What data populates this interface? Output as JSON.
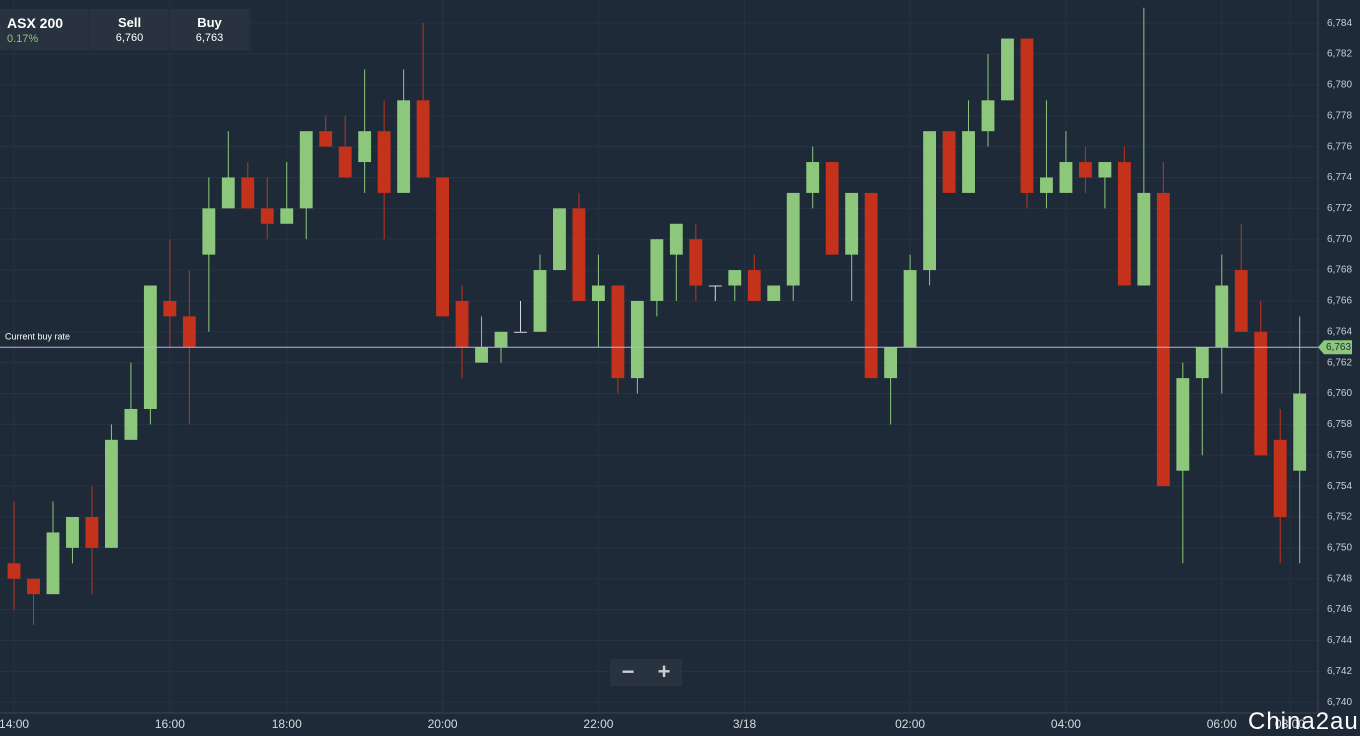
{
  "header": {
    "instrument": "ASX 200",
    "change": "0.17%",
    "sell_label": "Sell",
    "sell": "6,760",
    "buy_label": "Buy",
    "buy": "6,763"
  },
  "chart_data": {
    "type": "candlestick",
    "categories": [
      null,
      null,
      null,
      null,
      null,
      null,
      null,
      null,
      null,
      null,
      null,
      null,
      null,
      null,
      null,
      null,
      null,
      null,
      null,
      null,
      null,
      null,
      null,
      null,
      null,
      null,
      null,
      null,
      null,
      null,
      null,
      null,
      null,
      null,
      null,
      null,
      null,
      null,
      null,
      null,
      null,
      null,
      null,
      null,
      null,
      null,
      null,
      null,
      null,
      null,
      null,
      null,
      null,
      null,
      null,
      null,
      null,
      null,
      null,
      null,
      null,
      null,
      null,
      null,
      null,
      null,
      null
    ],
    "open": [
      6749,
      6748,
      6747,
      6750,
      6752,
      6750,
      6757,
      6759,
      6766,
      6765,
      6769,
      6772,
      6774,
      6772,
      6771,
      6772,
      6777,
      6776,
      6775,
      6777,
      6773,
      6779,
      6774,
      6766,
      6762,
      6763,
      6764,
      6764,
      6768,
      6772,
      6766,
      6767,
      6761,
      6766,
      6769,
      6770,
      6767,
      6767,
      6768,
      6766,
      6767,
      6773,
      6775,
      6769,
      6773,
      6761,
      6763,
      6768,
      6777,
      6773,
      6777,
      6779,
      6783,
      6773,
      6773,
      6775,
      6774,
      6775,
      6767,
      6773,
      6755,
      6761,
      6763,
      6768,
      6764,
      6757,
      6755
    ],
    "high": [
      6753,
      6748,
      6753,
      6752,
      6754,
      6758,
      6762,
      6767,
      6770,
      6768,
      6774,
      6777,
      6775,
      6774,
      6775,
      6777,
      6778,
      6778,
      6781,
      6779,
      6781,
      6784,
      6774,
      6767,
      6765,
      6764,
      6766,
      6769,
      6772,
      6773,
      6769,
      6767,
      6766,
      6770,
      6771,
      6771,
      6767,
      6768,
      6769,
      6767,
      6773,
      6776,
      6775,
      6773,
      6773,
      6763,
      6769,
      6777,
      6777,
      6779,
      6782,
      6783,
      6783,
      6779,
      6777,
      6776,
      6775,
      6776,
      6785,
      6775,
      6762,
      6763,
      6769,
      6771,
      6766,
      6759,
      6765
    ],
    "low": [
      6746,
      6745,
      6747,
      6749,
      6747,
      6750,
      6757,
      6758,
      6763,
      6758,
      6764,
      6772,
      6772,
      6770,
      6771,
      6770,
      6776,
      6774,
      6773,
      6770,
      6773,
      6774,
      6765,
      6761,
      6762,
      6762,
      6764,
      6764,
      6768,
      6766,
      6763,
      6760,
      6760,
      6765,
      6766,
      6766,
      6766,
      6766,
      6766,
      6766,
      6766,
      6772,
      6769,
      6766,
      6761,
      6758,
      6763,
      6767,
      6773,
      6773,
      6776,
      6779,
      6772,
      6772,
      6773,
      6773,
      6772,
      6767,
      6767,
      6754,
      6749,
      6756,
      6760,
      6764,
      6756,
      6749,
      6749
    ],
    "close": [
      6748,
      6747,
      6751,
      6752,
      6750,
      6757,
      6759,
      6767,
      6765,
      6763,
      6772,
      6774,
      6772,
      6771,
      6772,
      6777,
      6776,
      6774,
      6777,
      6773,
      6779,
      6774,
      6765,
      6763,
      6763,
      6764,
      6764,
      6768,
      6772,
      6766,
      6767,
      6761,
      6766,
      6770,
      6771,
      6767,
      6767,
      6768,
      6766,
      6767,
      6773,
      6775,
      6769,
      6773,
      6761,
      6763,
      6768,
      6777,
      6773,
      6777,
      6779,
      6783,
      6773,
      6774,
      6775,
      6774,
      6775,
      6767,
      6773,
      6754,
      6761,
      6763,
      6767,
      6764,
      6756,
      6752,
      6760
    ],
    "up_color": "#8cc77c",
    "down_color": "#c4321b",
    "xlim": [
      -0.72,
      66.94
    ],
    "xticks": [
      {
        "value": 0,
        "label": "14:00"
      },
      {
        "value": 8,
        "label": "16:00"
      },
      {
        "value": 14,
        "label": "18:00"
      },
      {
        "value": 22,
        "label": "20:00"
      },
      {
        "value": 30,
        "label": "22:00"
      },
      {
        "value": 37.5,
        "label": "3/18"
      },
      {
        "value": 46,
        "label": "02:00"
      },
      {
        "value": 54,
        "label": "04:00"
      },
      {
        "value": 62,
        "label": "06:00"
      },
      {
        "value": 65.5,
        "label": "08:00"
      }
    ],
    "ylim": [
      6739.3,
      6785.5
    ],
    "yticks": [
      {
        "value": 6740,
        "label": "6,740"
      },
      {
        "value": 6742,
        "label": "6,742"
      },
      {
        "value": 6744,
        "label": "6,744"
      },
      {
        "value": 6746,
        "label": "6,746"
      },
      {
        "value": 6748,
        "label": "6,748"
      },
      {
        "value": 6750,
        "label": "6,750"
      },
      {
        "value": 6752,
        "label": "6,752"
      },
      {
        "value": 6754,
        "label": "6,754"
      },
      {
        "value": 6756,
        "label": "6,756"
      },
      {
        "value": 6758,
        "label": "6,758"
      },
      {
        "value": 6760,
        "label": "6,760"
      },
      {
        "value": 6762,
        "label": "6,762"
      },
      {
        "value": 6764,
        "label": "6,764"
      },
      {
        "value": 6766,
        "label": "6,766"
      },
      {
        "value": 6768,
        "label": "6,768"
      },
      {
        "value": 6770,
        "label": "6,770"
      },
      {
        "value": 6772,
        "label": "6,772"
      },
      {
        "value": 6774,
        "label": "6,774"
      },
      {
        "value": 6776,
        "label": "6,776"
      },
      {
        "value": 6778,
        "label": "6,778"
      },
      {
        "value": 6780,
        "label": "6,780"
      },
      {
        "value": 6782,
        "label": "6,782"
      },
      {
        "value": 6784,
        "label": "6,784"
      }
    ],
    "grid": true,
    "current_rate": {
      "label": "Current buy rate",
      "value": 6763,
      "value_label": "6,763"
    }
  },
  "watermark": "China2au"
}
